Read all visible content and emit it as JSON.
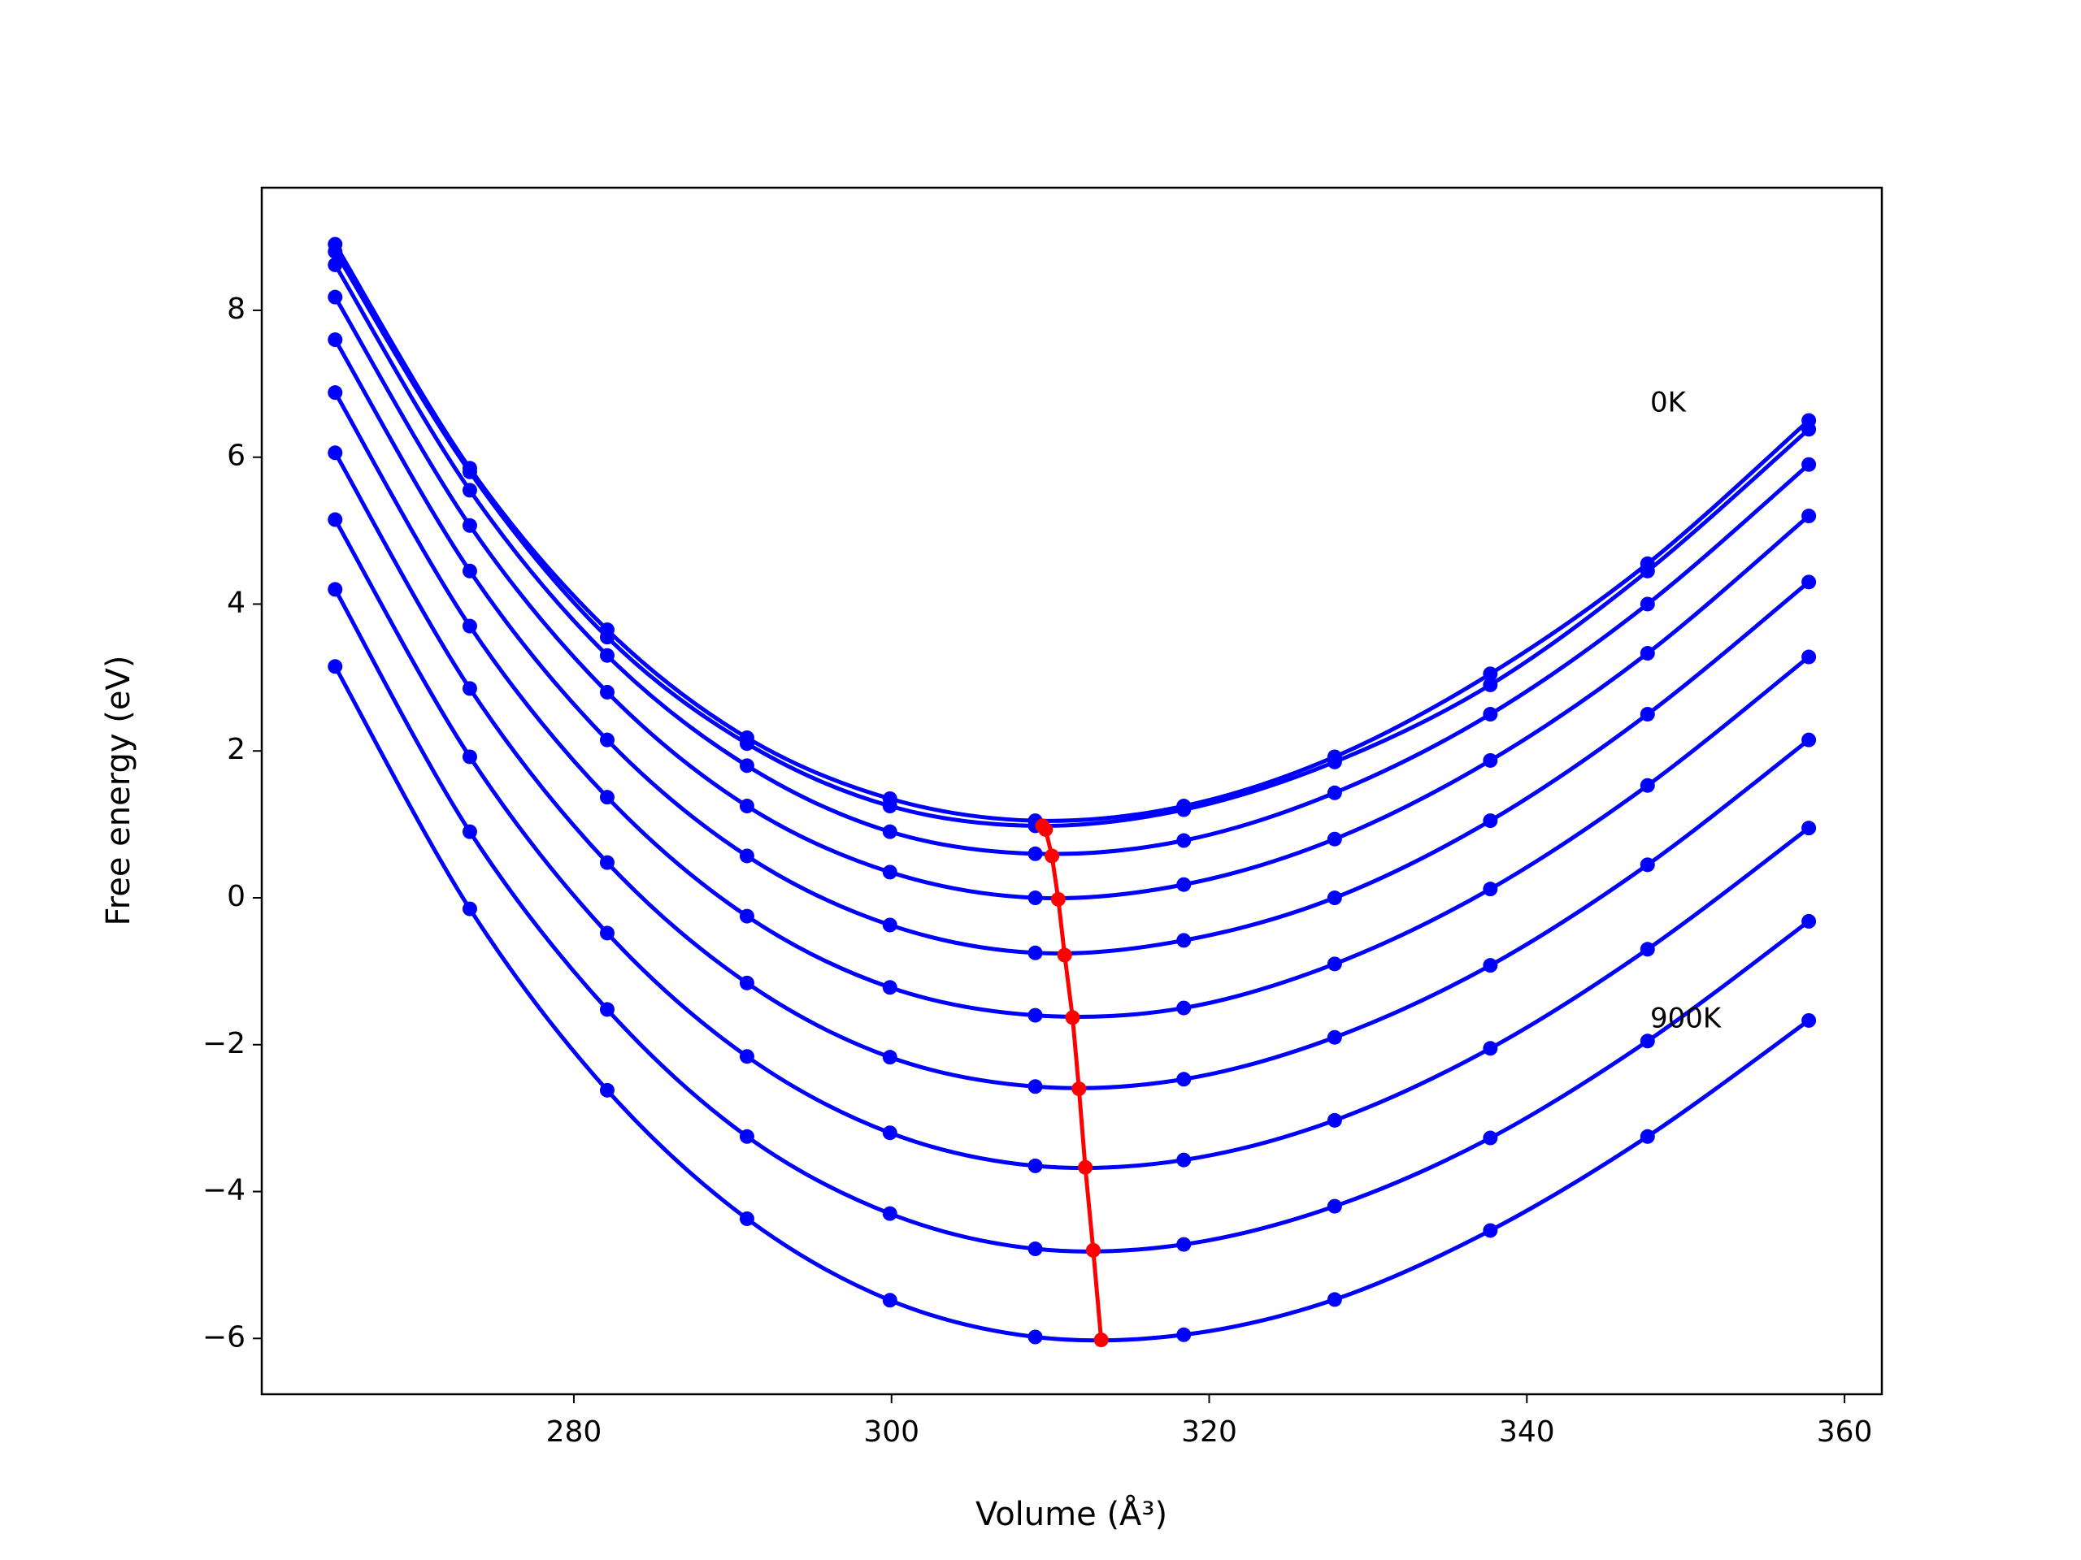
{
  "chart_data": {
    "type": "line",
    "xlabel": "Volume (Å³)",
    "ylabel": "Free energy (eV)",
    "x": [
      264.97,
      273.45,
      282.1,
      290.9,
      299.9,
      309.05,
      318.4,
      327.9,
      337.7,
      347.6,
      357.75
    ],
    "series": [
      {
        "color": "#0000ff",
        "values": [
          8.9,
          5.85,
          3.65,
          2.18,
          1.35,
          1.05,
          1.25,
          1.92,
          3.05,
          4.55,
          6.5
        ]
      },
      {
        "color": "#0000ff",
        "values": [
          8.8,
          5.8,
          3.55,
          2.1,
          1.25,
          0.98,
          1.2,
          1.85,
          2.9,
          4.45,
          6.38
        ]
      },
      {
        "color": "#0000ff",
        "values": [
          8.62,
          5.55,
          3.3,
          1.8,
          0.9,
          0.6,
          0.78,
          1.43,
          2.5,
          4.0,
          5.9
        ]
      },
      {
        "color": "#0000ff",
        "values": [
          8.18,
          5.07,
          2.8,
          1.25,
          0.35,
          0.0,
          0.18,
          0.8,
          1.87,
          3.33,
          5.2
        ]
      },
      {
        "color": "#0000ff",
        "values": [
          7.6,
          4.45,
          2.15,
          0.57,
          -0.37,
          -0.75,
          -0.58,
          0.0,
          1.05,
          2.5,
          4.3
        ]
      },
      {
        "color": "#0000ff",
        "values": [
          6.88,
          3.7,
          1.37,
          -0.25,
          -1.22,
          -1.6,
          -1.5,
          -0.9,
          0.12,
          1.53,
          3.28
        ]
      },
      {
        "color": "#0000ff",
        "values": [
          6.06,
          2.85,
          0.48,
          -1.16,
          -2.17,
          -2.57,
          -2.47,
          -1.9,
          -0.92,
          0.45,
          2.15
        ]
      },
      {
        "color": "#0000ff",
        "values": [
          5.15,
          1.92,
          -0.48,
          -2.16,
          -3.2,
          -3.65,
          -3.57,
          -3.03,
          -2.05,
          -0.7,
          0.95
        ]
      },
      {
        "color": "#0000ff",
        "values": [
          4.2,
          0.9,
          -1.52,
          -3.25,
          -4.3,
          -4.78,
          -4.72,
          -4.2,
          -3.27,
          -1.95,
          -0.32
        ]
      },
      {
        "color": "#0000ff",
        "values": [
          3.15,
          -0.15,
          -2.62,
          -4.37,
          -5.48,
          -5.98,
          -5.95,
          -5.47,
          -4.53,
          -3.25,
          -1.67
        ]
      },
      {
        "color": "#ff0000",
        "x": [
          309.5,
          309.7,
          310.1,
          310.5,
          310.9,
          311.4,
          311.8,
          312.2,
          312.7,
          313.2
        ],
        "values": [
          0.98,
          0.93,
          0.57,
          -0.02,
          -0.78,
          -1.63,
          -2.6,
          -3.67,
          -4.8,
          -6.02
        ]
      }
    ],
    "annotations": [
      "0K",
      "900K"
    ],
    "xlim": [
      260.35,
      362.35
    ],
    "ylim": [
      -6.76,
      9.67
    ],
    "xticks": [
      280,
      300,
      320,
      340,
      360
    ],
    "yticks": [
      {
        "value": -6,
        "label": "−6"
      },
      {
        "value": -4,
        "label": "−4"
      },
      {
        "value": -2,
        "label": "−2"
      },
      0,
      2,
      4,
      6,
      8
    ],
    "grid": false
  }
}
